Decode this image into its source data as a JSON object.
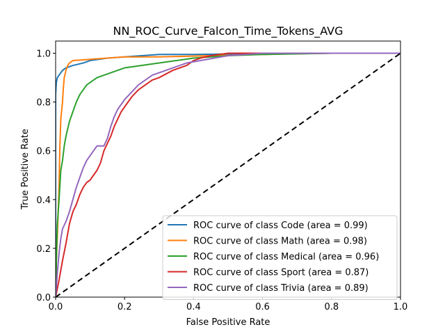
{
  "chart_data": {
    "type": "line",
    "title": "NN_ROC_Curve_Falcon_Time_Tokens_AVG",
    "xlabel": "False Positive Rate",
    "ylabel": "True Positive Rate",
    "xlim": [
      0.0,
      1.0
    ],
    "ylim": [
      0.0,
      1.05
    ],
    "xticks": [
      "0.0",
      "0.2",
      "0.4",
      "0.6",
      "0.8",
      "1.0"
    ],
    "yticks": [
      "0.0",
      "0.2",
      "0.4",
      "0.6",
      "0.8",
      "1.0"
    ],
    "grid": false,
    "legend_position": "lower-right",
    "series": [
      {
        "name": "ROC curve of class Code (area = 0.99)",
        "color": "#1f77b4",
        "x": [
          0.0,
          0.0,
          0.002,
          0.005,
          0.01,
          0.015,
          0.02,
          0.03,
          0.05,
          0.08,
          0.1,
          0.15,
          0.2,
          0.25,
          0.3,
          0.4,
          0.5,
          0.6,
          0.8,
          1.0
        ],
        "y": [
          0.0,
          0.83,
          0.88,
          0.9,
          0.91,
          0.92,
          0.93,
          0.94,
          0.95,
          0.96,
          0.97,
          0.98,
          0.985,
          0.99,
          0.995,
          0.995,
          0.997,
          0.998,
          1.0,
          1.0
        ]
      },
      {
        "name": "ROC curve of class Math (area = 0.98)",
        "color": "#ff7f0e",
        "x": [
          0.0,
          0.002,
          0.005,
          0.01,
          0.012,
          0.015,
          0.02,
          0.022,
          0.025,
          0.03,
          0.035,
          0.04,
          0.05,
          0.07,
          0.1,
          0.15,
          0.2,
          0.3,
          0.45,
          0.6,
          0.66,
          0.8,
          1.0
        ],
        "y": [
          0.0,
          0.15,
          0.25,
          0.45,
          0.6,
          0.73,
          0.8,
          0.85,
          0.9,
          0.93,
          0.95,
          0.96,
          0.97,
          0.972,
          0.975,
          0.98,
          0.985,
          0.985,
          0.99,
          0.995,
          0.997,
          1.0,
          1.0
        ]
      },
      {
        "name": "ROC curve of class Medical (area = 0.96)",
        "color": "#2ca02c",
        "x": [
          0.0,
          0.003,
          0.005,
          0.01,
          0.015,
          0.02,
          0.025,
          0.03,
          0.04,
          0.05,
          0.06,
          0.07,
          0.08,
          0.09,
          0.1,
          0.12,
          0.14,
          0.16,
          0.18,
          0.2,
          0.25,
          0.3,
          0.35,
          0.4,
          0.5,
          0.6,
          0.8,
          1.0
        ],
        "y": [
          0.0,
          0.2,
          0.3,
          0.4,
          0.52,
          0.56,
          0.62,
          0.66,
          0.72,
          0.76,
          0.8,
          0.83,
          0.85,
          0.87,
          0.88,
          0.9,
          0.91,
          0.92,
          0.93,
          0.94,
          0.95,
          0.96,
          0.97,
          0.98,
          0.99,
          0.995,
          1.0,
          1.0
        ]
      },
      {
        "name": "ROC curve of class Sport (area = 0.87)",
        "color": "#d62728",
        "x": [
          0.0,
          0.01,
          0.02,
          0.03,
          0.04,
          0.05,
          0.06,
          0.07,
          0.08,
          0.09,
          0.1,
          0.11,
          0.12,
          0.13,
          0.14,
          0.15,
          0.16,
          0.17,
          0.18,
          0.19,
          0.2,
          0.22,
          0.24,
          0.26,
          0.28,
          0.3,
          0.34,
          0.38,
          0.4,
          0.42,
          0.45,
          0.5,
          0.6,
          0.8,
          1.0
        ],
        "y": [
          0.0,
          0.07,
          0.15,
          0.22,
          0.3,
          0.35,
          0.38,
          0.42,
          0.45,
          0.47,
          0.48,
          0.5,
          0.52,
          0.55,
          0.6,
          0.63,
          0.66,
          0.7,
          0.73,
          0.76,
          0.78,
          0.82,
          0.85,
          0.87,
          0.89,
          0.9,
          0.93,
          0.95,
          0.97,
          0.98,
          0.99,
          1.0,
          1.0,
          1.0,
          1.0
        ]
      },
      {
        "name": "ROC curve of class Trivia (area = 0.89)",
        "color": "#9467bd",
        "x": [
          0.0,
          0.005,
          0.01,
          0.015,
          0.02,
          0.03,
          0.04,
          0.05,
          0.06,
          0.07,
          0.08,
          0.09,
          0.1,
          0.11,
          0.12,
          0.14,
          0.15,
          0.16,
          0.17,
          0.18,
          0.19,
          0.2,
          0.22,
          0.24,
          0.26,
          0.28,
          0.3,
          0.34,
          0.38,
          0.42,
          0.46,
          0.5,
          0.6,
          0.8,
          1.0
        ],
        "y": [
          0.0,
          0.1,
          0.18,
          0.24,
          0.28,
          0.31,
          0.35,
          0.4,
          0.45,
          0.49,
          0.53,
          0.56,
          0.58,
          0.6,
          0.62,
          0.62,
          0.65,
          0.7,
          0.74,
          0.77,
          0.79,
          0.81,
          0.84,
          0.87,
          0.89,
          0.91,
          0.92,
          0.94,
          0.96,
          0.97,
          0.98,
          0.99,
          1.0,
          1.0,
          1.0
        ]
      },
      {
        "name": "",
        "color": "#000000",
        "dashed": true,
        "x": [
          0.0,
          1.0
        ],
        "y": [
          0.0,
          1.0
        ]
      }
    ]
  }
}
